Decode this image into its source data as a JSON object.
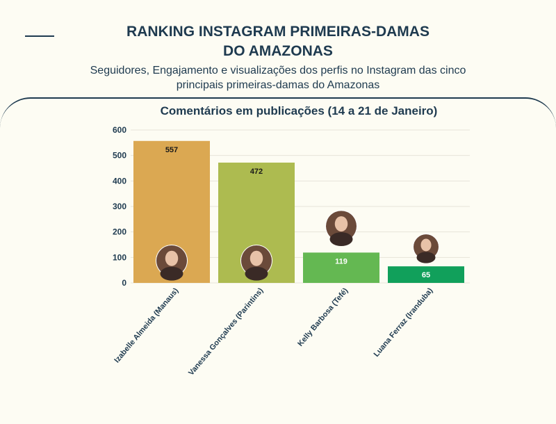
{
  "header": {
    "title_line1": "RANKING INSTAGRAM PRIMEIRAS-DAMAS",
    "title_line2": "DO AMAZONAS",
    "subtitle_line1": "Seguidores, Engajamento e visualizações dos perfis no Instagram das cinco",
    "subtitle_line2": "principais primeiras-damas do Amazonas"
  },
  "chart_data": {
    "type": "bar",
    "title": "Comentários em publicações (14 a 21 de Janeiro)",
    "categories": [
      "Izabelle Almeida (Manaus)",
      "Vanessa Gonçalves (Parintins)",
      "Kelly Barbosa (Tefé)",
      "Luana Ferraz (Iranduba)"
    ],
    "values": [
      557,
      472,
      119,
      65
    ],
    "colors": [
      "#dba852",
      "#adbb50",
      "#64b852",
      "#11a05b"
    ],
    "label_colors": [
      "#1a1a1a",
      "#1a1a1a",
      "#ffffff",
      "#ffffff"
    ],
    "ylim": [
      0,
      600
    ],
    "yticks": [
      0,
      100,
      200,
      300,
      400,
      500,
      600
    ],
    "grid": true,
    "avatar_icons": [
      "avatar-photo-icon",
      "avatar-photo-icon",
      "avatar-photo-icon",
      "avatar-photo-icon"
    ]
  }
}
